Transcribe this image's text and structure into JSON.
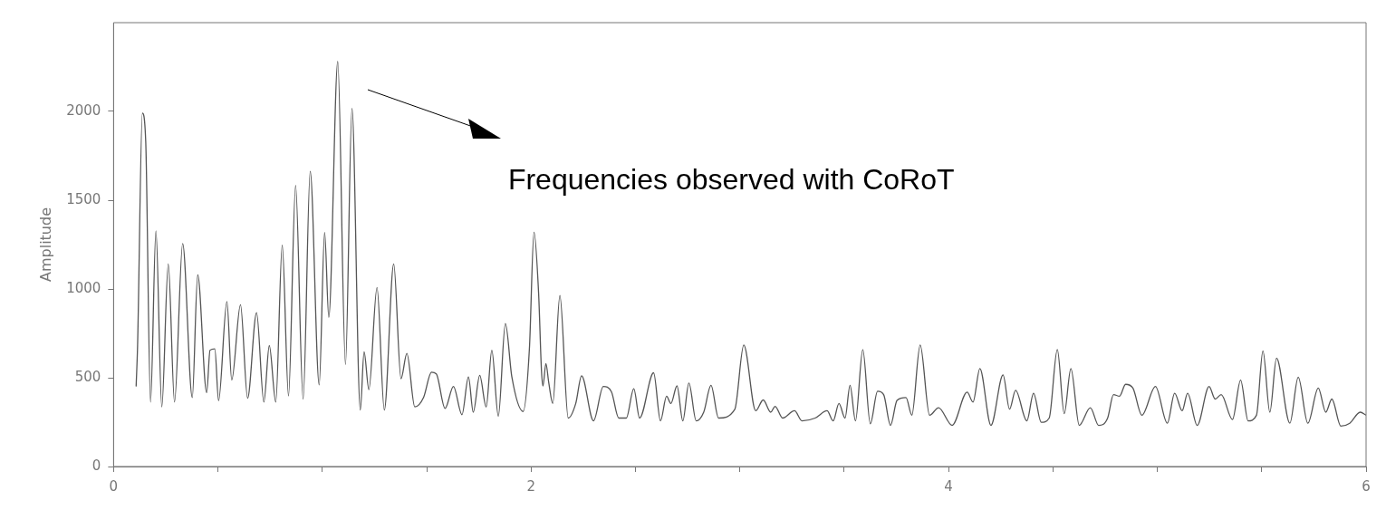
{
  "chart_data": {
    "type": "line",
    "ylabel": "Amplitude",
    "annotations": [
      "Frequencies observed with CoRoT"
    ],
    "xlim": [
      0,
      6
    ],
    "ylim": [
      0,
      2500
    ],
    "xticks": [
      0,
      {
        "value": 0.5,
        "label": null
      },
      {
        "value": 1,
        "label": null
      },
      {
        "value": 1.5,
        "label": null
      },
      2,
      {
        "value": 2.5,
        "label": null
      },
      {
        "value": 3,
        "label": null
      },
      {
        "value": 3.5,
        "label": null
      },
      4,
      {
        "value": 4.5,
        "label": null
      },
      {
        "value": 5,
        "label": null
      },
      {
        "value": 5.5,
        "label": null
      },
      6
    ],
    "yticks": [
      0,
      500,
      1000,
      1500,
      2000
    ],
    "grid": false,
    "legend": false,
    "marker": "none",
    "line_style": "solid",
    "series": [
      {
        "color": "#555555",
        "x": [
          0.108,
          0.115,
          0.138,
          0.154,
          0.177,
          0.203,
          0.231,
          0.262,
          0.292,
          0.331,
          0.377,
          0.403,
          0.446,
          0.462,
          0.485,
          0.503,
          0.543,
          0.566,
          0.608,
          0.642,
          0.685,
          0.72,
          0.746,
          0.777,
          0.808,
          0.838,
          0.872,
          0.908,
          0.942,
          0.985,
          1.011,
          1.031,
          1.074,
          1.111,
          1.142,
          1.182,
          1.2,
          1.223,
          1.262,
          1.297,
          1.342,
          1.377,
          1.405,
          1.443,
          1.485,
          1.523,
          1.546,
          1.588,
          1.628,
          1.669,
          1.7,
          1.723,
          1.754,
          1.785,
          1.812,
          1.843,
          1.877,
          1.908,
          1.962,
          1.992,
          2.014,
          2.036,
          2.05,
          2.057,
          2.071,
          2.085,
          2.104,
          2.138,
          2.178,
          2.214,
          2.242,
          2.299,
          2.346,
          2.385,
          2.42,
          2.456,
          2.492,
          2.52,
          2.587,
          2.62,
          2.649,
          2.67,
          2.699,
          2.727,
          2.756,
          2.791,
          2.827,
          2.862,
          2.898,
          2.976,
          3.019,
          3.076,
          3.112,
          3.148,
          3.169,
          3.205,
          3.262,
          3.298,
          3.361,
          3.418,
          3.447,
          3.475,
          3.504,
          3.528,
          3.554,
          3.589,
          3.625,
          3.66,
          3.689,
          3.722,
          3.753,
          3.796,
          3.824,
          3.864,
          3.909,
          3.952,
          4.017,
          4.089,
          4.117,
          4.15,
          4.203,
          4.261,
          4.292,
          4.321,
          4.375,
          4.407,
          4.444,
          4.482,
          4.521,
          4.554,
          4.586,
          4.626,
          4.679,
          4.719,
          4.762,
          4.79,
          4.819,
          4.848,
          4.883,
          4.926,
          4.991,
          5.048,
          5.083,
          5.119,
          5.145,
          5.191,
          5.248,
          5.277,
          5.306,
          5.36,
          5.399,
          5.435,
          5.475,
          5.506,
          5.539,
          5.571,
          5.635,
          5.675,
          5.721,
          5.771,
          5.807,
          5.836,
          5.879,
          5.922,
          5.972,
          6.0
        ],
        "values": [
          451,
          681,
          1990,
          1831,
          363,
          1327,
          336,
          1141,
          363,
          1256,
          389,
          1079,
          416,
          655,
          663,
          371,
          929,
          487,
          911,
          384,
          867,
          363,
          681,
          363,
          1247,
          398,
          1583,
          380,
          1663,
          460,
          1318,
          840,
          2282,
          575,
          2017,
          318,
          646,
          433,
          1008,
          318,
          1141,
          495,
          637,
          336,
          389,
          531,
          522,
          327,
          451,
          292,
          504,
          306,
          513,
          336,
          655,
          283,
          805,
          504,
          310,
          663,
          1320,
          979,
          536,
          454,
          580,
          470,
          355,
          963,
          273,
          355,
          511,
          257,
          451,
          421,
          273,
          273,
          438,
          273,
          528,
          257,
          396,
          355,
          454,
          257,
          470,
          257,
          306,
          457,
          273,
          322,
          684,
          314,
          375,
          306,
          339,
          273,
          314,
          257,
          273,
          314,
          257,
          355,
          273,
          457,
          257,
          659,
          241,
          424,
          405,
          232,
          372,
          388,
          289,
          684,
          289,
          331,
          232,
          419,
          363,
          552,
          232,
          516,
          323,
          429,
          257,
          413,
          249,
          273,
          659,
          298,
          552,
          232,
          331,
          232,
          273,
          405,
          396,
          463,
          442,
          289,
          451,
          244,
          413,
          314,
          413,
          232,
          451,
          380,
          405,
          265,
          487,
          257,
          289,
          651,
          306,
          610,
          244,
          503,
          244,
          442,
          306,
          380,
          228,
          244,
          306,
          289
        ]
      }
    ]
  }
}
